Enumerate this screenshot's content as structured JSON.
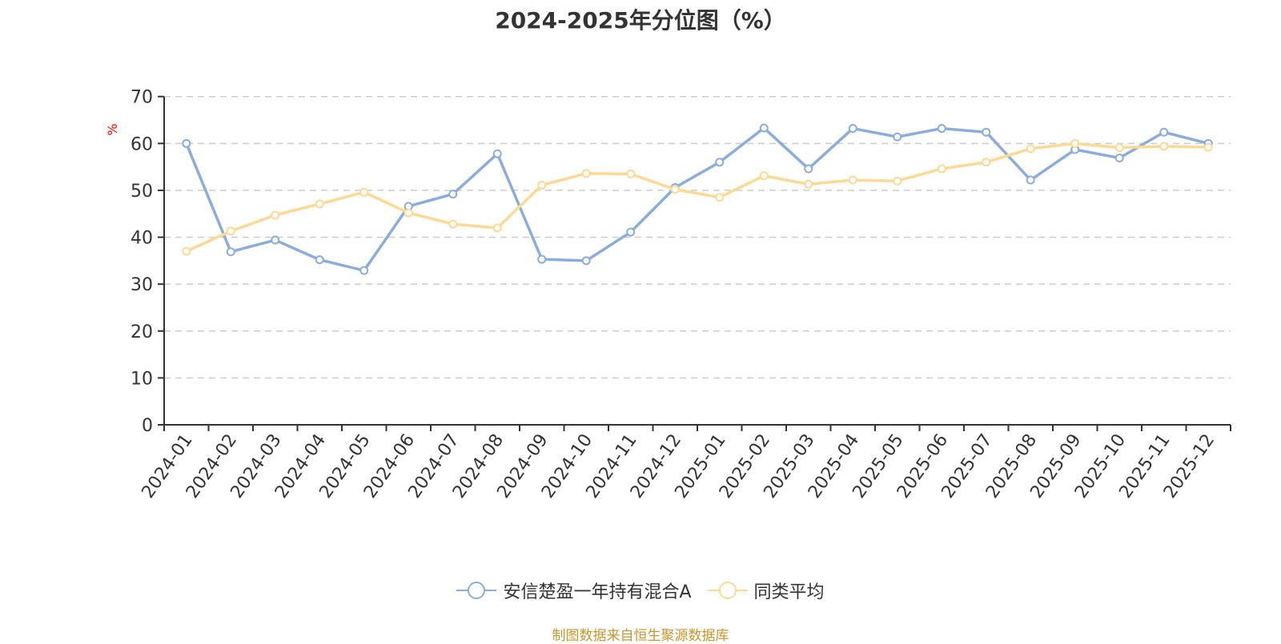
{
  "title": "2024-2025年分位图（%）",
  "footer": "制图数据来自恒生聚源数据库",
  "y_unit": "%",
  "colors": {
    "series1": "#8cacdc",
    "series2": "#fdd995",
    "footer": "#c8962e",
    "unit": "#ff0000"
  },
  "legend": [
    {
      "label": "安信楚盈一年持有混合A",
      "color": "#8cacdc"
    },
    {
      "label": "同类平均",
      "color": "#fdd995"
    }
  ],
  "chart_data": {
    "type": "line",
    "title": "2024-2025年分位图（%）",
    "xlabel": "",
    "ylabel": "%",
    "ylim": [
      0,
      70
    ],
    "yticks": [
      0,
      10,
      20,
      30,
      40,
      50,
      60,
      70
    ],
    "grid": true,
    "legend_position": "bottom",
    "categories": [
      "2024-01",
      "2024-02",
      "2024-03",
      "2024-04",
      "2024-05",
      "2024-06",
      "2024-07",
      "2024-08",
      "2024-09",
      "2024-10",
      "2024-11",
      "2024-12",
      "2025-01",
      "2025-02",
      "2025-03",
      "2025-04",
      "2025-05",
      "2025-06",
      "2025-07",
      "2025-08",
      "2025-09",
      "2025-10",
      "2025-11",
      "2025-12"
    ],
    "series": [
      {
        "name": "安信楚盈一年持有混合A",
        "color": "#8cacdc",
        "values": [
          60.0,
          36.9,
          39.4,
          35.2,
          32.9,
          46.6,
          49.2,
          57.8,
          35.3,
          35.0,
          41.1,
          50.6,
          56.0,
          63.3,
          54.6,
          63.2,
          61.4,
          63.2,
          62.4,
          52.2,
          58.7,
          56.9,
          62.4,
          60.0
        ]
      },
      {
        "name": "同类平均",
        "color": "#fdd995",
        "values": [
          37.0,
          41.3,
          44.7,
          47.1,
          49.6,
          45.2,
          42.8,
          42.0,
          51.1,
          53.6,
          53.5,
          50.2,
          48.5,
          53.1,
          51.3,
          52.2,
          52.0,
          54.6,
          56.0,
          58.9,
          60.0,
          59.1,
          59.4,
          59.2
        ]
      }
    ]
  }
}
